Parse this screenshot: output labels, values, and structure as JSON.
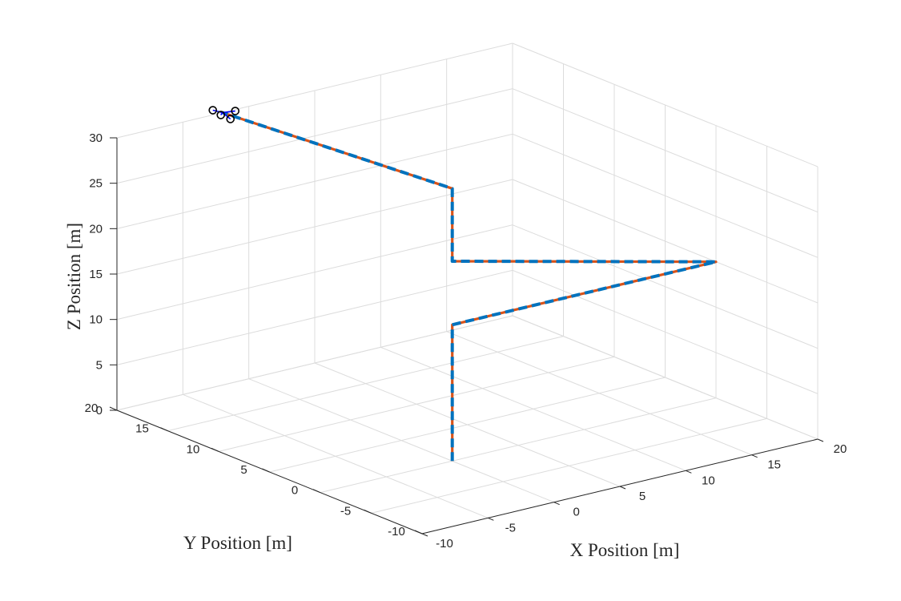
{
  "chart_data": {
    "type": "line3d",
    "title": "",
    "xlabel": "X Position [m]",
    "ylabel": "Y Position [m]",
    "zlabel": "Z Position [m]",
    "xlim": [
      -10,
      20
    ],
    "ylim": [
      -10,
      20
    ],
    "zlim": [
      0,
      30
    ],
    "xticks": [
      -10,
      -5,
      0,
      5,
      10,
      15,
      20
    ],
    "yticks": [
      -10,
      -5,
      0,
      5,
      10,
      15,
      20
    ],
    "zticks": [
      0,
      5,
      10,
      15,
      20,
      25,
      30
    ],
    "grid": true,
    "colors": {
      "reference": "#D95319",
      "actual": "#0072BD",
      "marker": "#000000",
      "marker_arm": "#0000FF",
      "grid": "#dcdcdc",
      "axis": "#262626"
    },
    "series": [
      {
        "style": "solid",
        "points": [
          [
            0,
            0,
            0
          ],
          [
            0,
            0,
            15
          ],
          [
            20,
            0,
            15
          ],
          [
            0,
            0,
            22
          ],
          [
            0,
            0,
            30
          ],
          [
            -2,
            20,
            30
          ]
        ]
      },
      {
        "style": "dashed",
        "points": [
          [
            0,
            0,
            0
          ],
          [
            0,
            0,
            15
          ],
          [
            20,
            0,
            15
          ],
          [
            0,
            0,
            22
          ],
          [
            0,
            0,
            30
          ],
          [
            -2,
            20,
            30
          ]
        ]
      }
    ],
    "markers": [
      {
        "shape": "circle",
        "position": [
          -2,
          20,
          30
        ]
      }
    ]
  }
}
